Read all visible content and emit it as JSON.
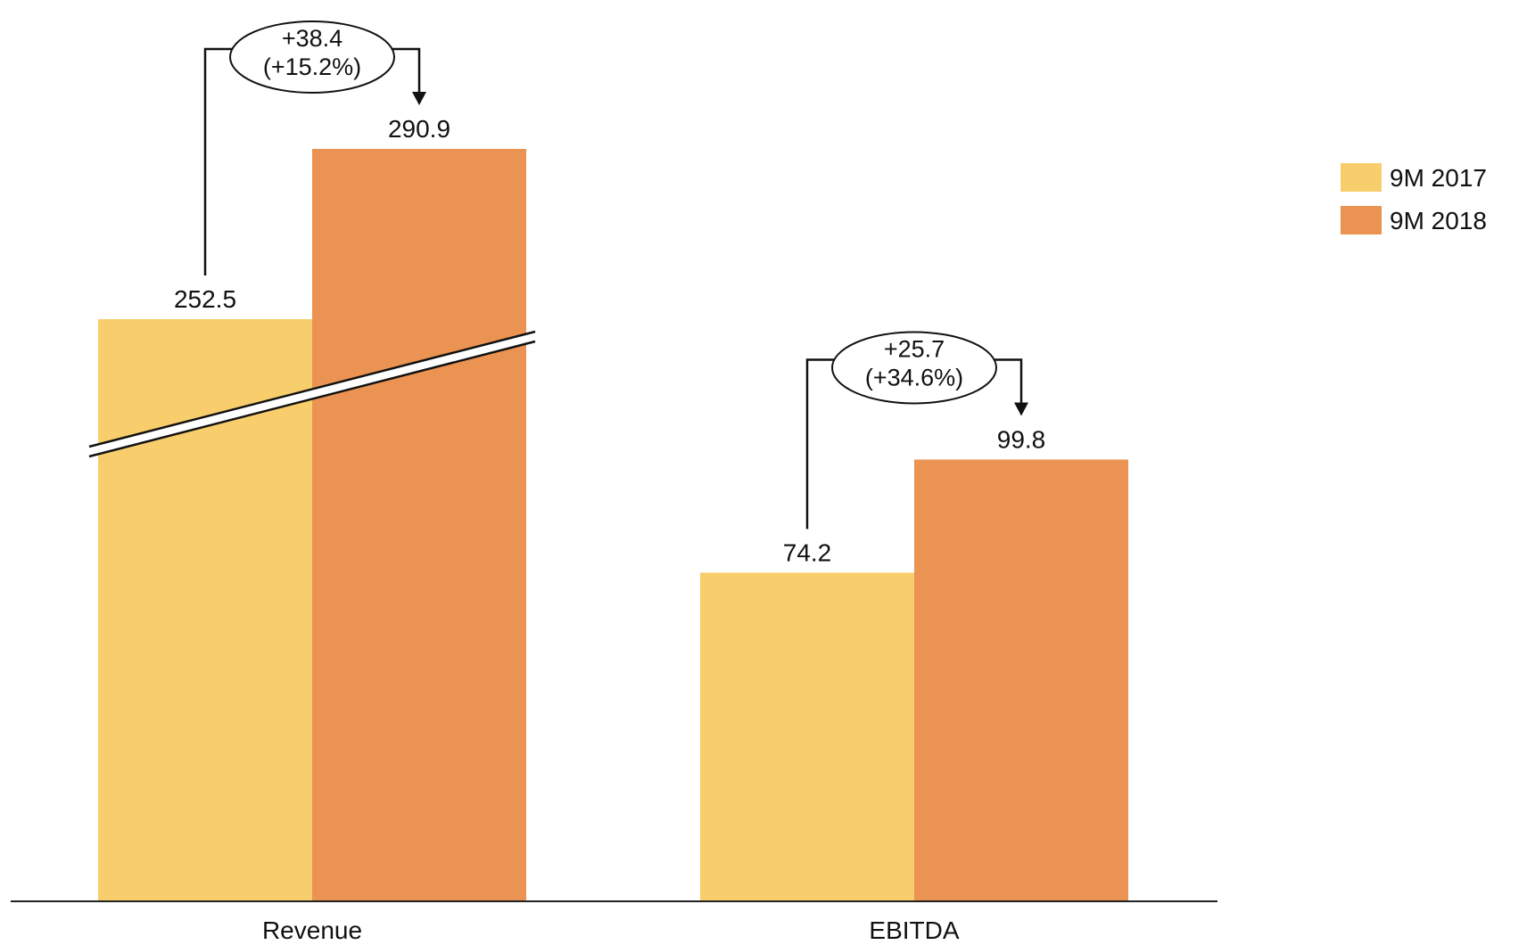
{
  "chart_data": {
    "type": "bar",
    "categories": [
      "Revenue",
      "EBITDA"
    ],
    "series": [
      {
        "name": "9M 2017",
        "values": [
          252.5,
          74.2
        ],
        "color": "#f8cd6c"
      },
      {
        "name": "9M 2018",
        "values": [
          290.9,
          99.8
        ],
        "color": "#eb9352"
      }
    ],
    "data_labels": [
      [
        "252.5",
        "74.2"
      ],
      [
        "290.9",
        "99.8"
      ]
    ],
    "annotations": [
      {
        "category": "Revenue",
        "delta": "+38.4",
        "pct": "(+15.2%)"
      },
      {
        "category": "EBITDA",
        "delta": "+25.7",
        "pct": "(+34.6%)"
      }
    ],
    "axis_break": {
      "category": "Revenue"
    },
    "legend_position": "top-right",
    "title": "",
    "xlabel": "",
    "ylabel": "",
    "grid": false
  }
}
